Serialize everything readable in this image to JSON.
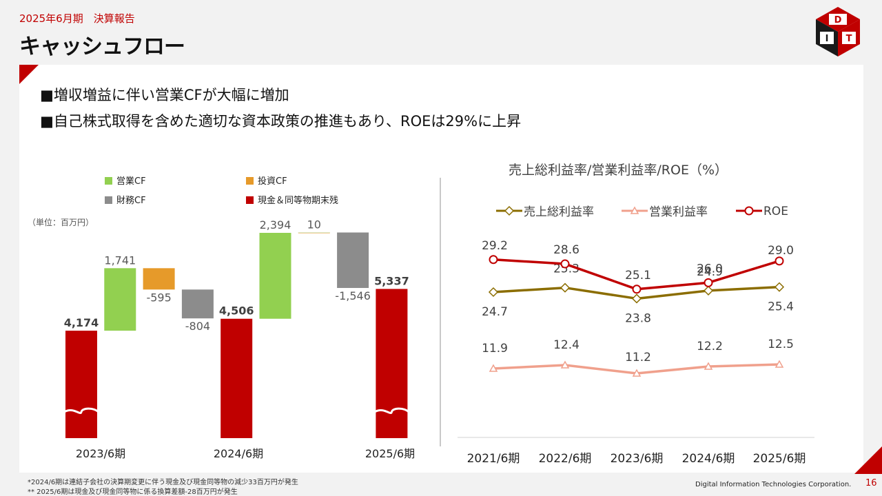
{
  "header": {
    "period": "2025年6月期　決算報告",
    "title": "キャッシュフロー"
  },
  "bullets": [
    "■増収増益に伴い営業CFが大幅に増加",
    "■自己株式取得を含めた適切な資本政策の推進もあり、ROEは29%に上昇"
  ],
  "colors": {
    "accent": "#c00000",
    "operating_cf": "#92d050",
    "investing_cf": "#e69a2a",
    "financing_cf": "#8c8c8c",
    "cash": "#c00000",
    "gross_margin": "#8b6d00",
    "operating_margin": "#f0a08c",
    "roe": "#c00000"
  },
  "chart_data": [
    {
      "type": "bar",
      "subtype": "waterfall",
      "unit_label": "（単位：百万円）",
      "legend": [
        {
          "name": "営業CF",
          "color": "#92d050"
        },
        {
          "name": "投資CF",
          "color": "#e69a2a"
        },
        {
          "name": "財務CF",
          "color": "#8c8c8c"
        },
        {
          "name": "現金＆同等物期末残",
          "color": "#c00000"
        }
      ],
      "categories": [
        "2023/6期",
        "2024/6期",
        "2025/6期"
      ],
      "bars": [
        {
          "kind": "cash",
          "group": 0,
          "start": 0,
          "end": 4174,
          "label": "4,174",
          "bold": true,
          "broken": true
        },
        {
          "kind": "operating",
          "group": 0,
          "start": 4174,
          "end": 5915,
          "label": "1,741"
        },
        {
          "kind": "investing",
          "group": 0,
          "start": 5915,
          "end": 5320,
          "label": "-595"
        },
        {
          "kind": "financing",
          "group": 0,
          "start": 5320,
          "end": 4516,
          "label": "-804"
        },
        {
          "kind": "cash",
          "group": 1,
          "start": 0,
          "end": 4506,
          "label": "4,506",
          "bold": true
        },
        {
          "kind": "operating",
          "group": 1,
          "start": 4506,
          "end": 6900,
          "label": "2,394"
        },
        {
          "kind": "investing",
          "group": 1,
          "start": 6900,
          "end": 6910,
          "label": "10"
        },
        {
          "kind": "financing",
          "group": 1,
          "start": 6910,
          "end": 5364,
          "label": "-1,546"
        },
        {
          "kind": "cash",
          "group": 2,
          "start": 0,
          "end": 5337,
          "label": "5,337",
          "bold": true,
          "broken": true
        }
      ]
    },
    {
      "type": "line",
      "title": "売上総利益率/営業利益率/ROE（%）",
      "x": [
        "2021/6期",
        "2022/6期",
        "2023/6期",
        "2024/6期",
        "2025/6期"
      ],
      "series": [
        {
          "name": "売上総利益率",
          "values": [
            24.7,
            25.3,
            23.8,
            24.9,
            25.4
          ],
          "labels": [
            "24.7",
            "25.3",
            "23.8",
            "24.9",
            "25.4"
          ],
          "color": "#8b6d00",
          "marker": "diamond"
        },
        {
          "name": "営業利益率",
          "values": [
            11.9,
            12.4,
            11.2,
            12.2,
            12.5
          ],
          "labels": [
            "11.9",
            "12.4",
            "11.2",
            "12.2",
            "12.5"
          ],
          "color": "#f0a08c",
          "marker": "triangle"
        },
        {
          "name": "ROE",
          "values": [
            29.2,
            28.6,
            25.1,
            26.0,
            29.0
          ],
          "labels": [
            "29.2",
            "28.6",
            "25.1",
            "26.0",
            "29.0"
          ],
          "color": "#c00000",
          "marker": "circle"
        }
      ]
    }
  ],
  "footnotes": [
    "*2024/6期は連結子会社の決算期変更に伴う現金及び現金同等物の減少33百万円が発生",
    "** 2025/6期は現金及び現金同等物に係る換算差額-28百万円が発生"
  ],
  "footer": {
    "company": "Digital Information Technologies Corporation.",
    "page": "16"
  },
  "logo": {
    "letters": [
      "D",
      "I",
      "T"
    ]
  }
}
